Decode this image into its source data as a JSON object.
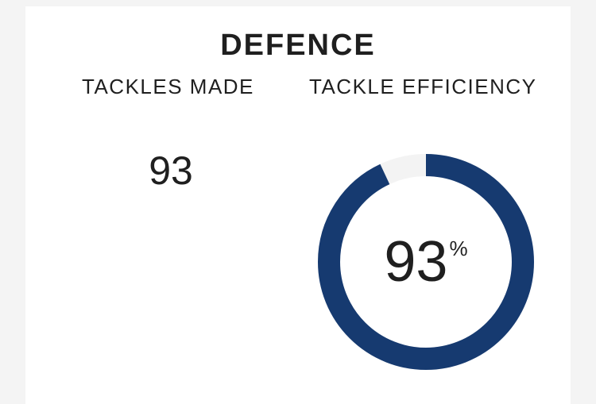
{
  "section": {
    "title": "DEFENCE"
  },
  "tackles_made": {
    "label": "TACKLES MADE",
    "value": "93"
  },
  "tackle_efficiency": {
    "label": "TACKLE EFFICIENCY",
    "value": "93",
    "unit": "%",
    "percent": 93
  },
  "colors": {
    "ring_fill": "#163a70",
    "ring_track": "#f3f3f3",
    "text": "#1f1f1f",
    "card_background": "#ffffff",
    "page_background": "#f4f4f4"
  }
}
